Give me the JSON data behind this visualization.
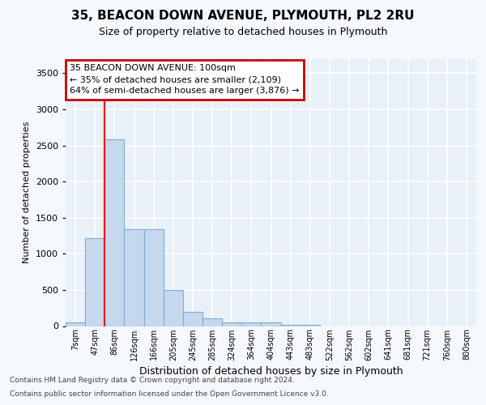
{
  "title1": "35, BEACON DOWN AVENUE, PLYMOUTH, PL2 2RU",
  "title2": "Size of property relative to detached houses in Plymouth",
  "xlabel": "Distribution of detached houses by size in Plymouth",
  "ylabel": "Number of detached properties",
  "categories": [
    "7sqm",
    "47sqm",
    "86sqm",
    "126sqm",
    "166sqm",
    "205sqm",
    "245sqm",
    "285sqm",
    "324sqm",
    "364sqm",
    "404sqm",
    "443sqm",
    "483sqm",
    "522sqm",
    "562sqm",
    "602sqm",
    "641sqm",
    "681sqm",
    "721sqm",
    "760sqm",
    "800sqm"
  ],
  "bar_values": [
    55,
    1220,
    2580,
    1340,
    1340,
    500,
    195,
    110,
    55,
    55,
    55,
    20,
    20,
    0,
    0,
    0,
    0,
    0,
    0,
    0,
    0
  ],
  "bar_color": "#c5d8ee",
  "bar_edge_color": "#7aafd4",
  "red_line_x": 1.5,
  "ylim": [
    0,
    3700
  ],
  "yticks": [
    0,
    500,
    1000,
    1500,
    2000,
    2500,
    3000,
    3500
  ],
  "annotation_text": "35 BEACON DOWN AVENUE: 100sqm\n← 35% of detached houses are smaller (2,109)\n64% of semi-detached houses are larger (3,876) →",
  "annotation_box_color": "#ffffff",
  "annotation_box_edge": "#cc0000",
  "footer1": "Contains HM Land Registry data © Crown copyright and database right 2024.",
  "footer2": "Contains public sector information licensed under the Open Government Licence v3.0.",
  "fig_bg_color": "#f5f8fc",
  "plot_bg_color": "#e8f0f8",
  "grid_color": "#ffffff",
  "title1_fontsize": 11,
  "title2_fontsize": 9,
  "ylabel_fontsize": 8,
  "xlabel_fontsize": 9,
  "tick_fontsize": 7,
  "footer_fontsize": 6.5
}
